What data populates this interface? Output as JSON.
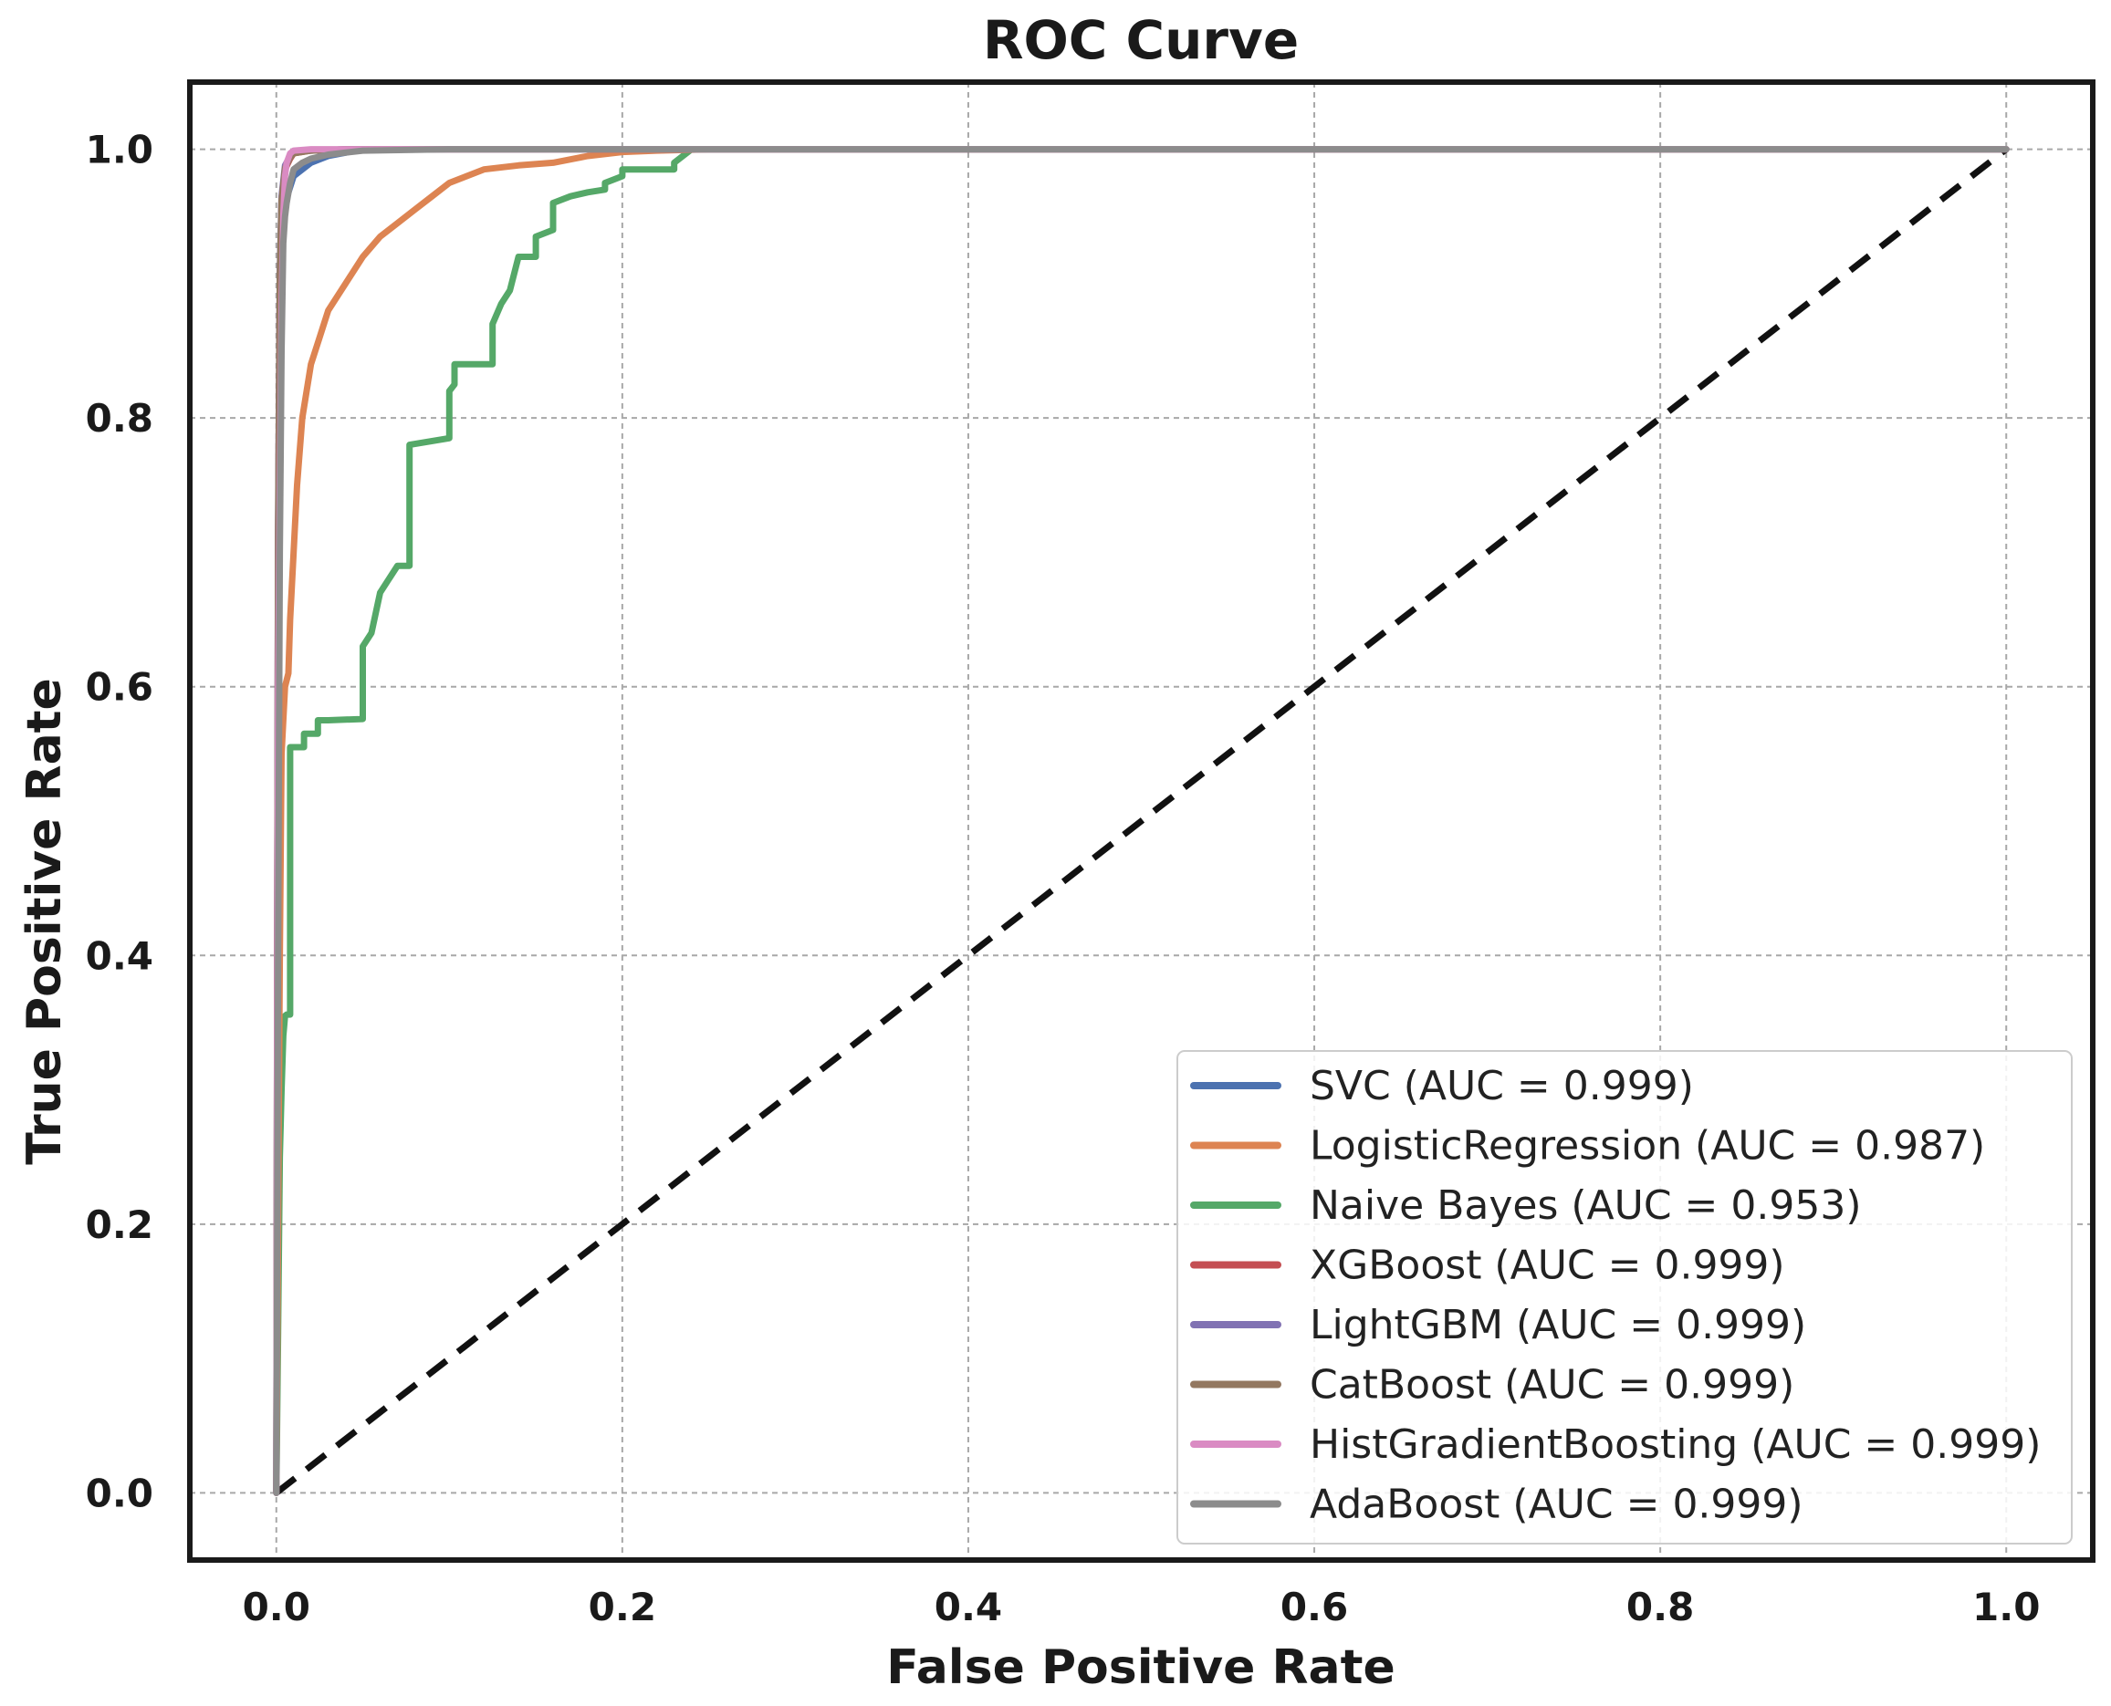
{
  "chart_data": {
    "type": "line",
    "title": "ROC Curve",
    "xlabel": "False Positive Rate",
    "ylabel": "True Positive Rate",
    "xlim": [
      -0.05,
      1.05
    ],
    "ylim": [
      -0.05,
      1.05
    ],
    "grid": true,
    "legend_position": "lower-right",
    "x_ticks": [
      0.0,
      0.2,
      0.4,
      0.6,
      0.8,
      1.0
    ],
    "x_tick_labels": [
      "0.0",
      "0.2",
      "0.4",
      "0.6",
      "0.8",
      "1.0"
    ],
    "y_ticks": [
      0.0,
      0.2,
      0.4,
      0.6,
      0.8,
      1.0
    ],
    "y_tick_labels": [
      "0.0",
      "0.2",
      "0.4",
      "0.6",
      "0.8",
      "1.0"
    ],
    "chance_line": {
      "x": [
        0,
        1
      ],
      "y": [
        0,
        1
      ]
    },
    "series": [
      {
        "name": "SVC (AUC = 0.999)",
        "color": "#4c72b0",
        "x": [
          0,
          0.0005,
          0.001,
          0.002,
          0.003,
          0.005,
          0.01,
          0.02,
          0.03,
          0.05,
          0.1,
          1.0
        ],
        "y": [
          0,
          0.3,
          0.6,
          0.85,
          0.93,
          0.96,
          0.98,
          0.99,
          0.995,
          1.0,
          1.0,
          1.0
        ]
      },
      {
        "name": "LogisticRegression (AUC = 0.987)",
        "color": "#dd8452",
        "x": [
          0,
          0.001,
          0.002,
          0.003,
          0.005,
          0.007,
          0.008,
          0.01,
          0.012,
          0.015,
          0.02,
          0.025,
          0.03,
          0.04,
          0.05,
          0.06,
          0.07,
          0.08,
          0.09,
          0.1,
          0.12,
          0.14,
          0.16,
          0.18,
          0.2,
          0.22,
          0.25,
          0.3,
          1.0
        ],
        "y": [
          0,
          0.2,
          0.4,
          0.55,
          0.6,
          0.61,
          0.65,
          0.7,
          0.75,
          0.8,
          0.84,
          0.86,
          0.88,
          0.9,
          0.92,
          0.935,
          0.945,
          0.955,
          0.965,
          0.975,
          0.985,
          0.988,
          0.99,
          0.995,
          0.998,
          0.999,
          1.0,
          1.0,
          1.0
        ]
      },
      {
        "name": "Naive Bayes (AUC = 0.953)",
        "color": "#55a868",
        "x": [
          0,
          0.001,
          0.002,
          0.003,
          0.004,
          0.005,
          0.006,
          0.008,
          0.008,
          0.016,
          0.016,
          0.024,
          0.024,
          0.03,
          0.05,
          0.05,
          0.055,
          0.06,
          0.065,
          0.07,
          0.077,
          0.077,
          0.1,
          0.1,
          0.103,
          0.103,
          0.125,
          0.125,
          0.13,
          0.135,
          0.14,
          0.15,
          0.15,
          0.16,
          0.16,
          0.17,
          0.18,
          0.19,
          0.19,
          0.2,
          0.2,
          0.23,
          0.23,
          0.24,
          1.0
        ],
        "y": [
          0,
          0.12,
          0.25,
          0.3,
          0.34,
          0.355,
          0.356,
          0.356,
          0.555,
          0.555,
          0.565,
          0.565,
          0.575,
          0.575,
          0.576,
          0.63,
          0.64,
          0.67,
          0.68,
          0.69,
          0.69,
          0.78,
          0.785,
          0.82,
          0.825,
          0.84,
          0.84,
          0.87,
          0.885,
          0.895,
          0.92,
          0.92,
          0.935,
          0.94,
          0.96,
          0.965,
          0.968,
          0.97,
          0.975,
          0.98,
          0.985,
          0.985,
          0.99,
          1.0,
          1.0
        ]
      },
      {
        "name": "XGBoost (AUC = 0.999)",
        "color": "#c44e52",
        "x": [
          0,
          0.0005,
          0.001,
          0.002,
          0.003,
          0.005,
          0.008,
          0.01,
          0.02,
          0.04,
          1.0
        ],
        "y": [
          0,
          0.4,
          0.7,
          0.9,
          0.96,
          0.985,
          0.993,
          0.997,
          0.999,
          1.0,
          1.0
        ]
      },
      {
        "name": "LightGBM (AUC = 0.999)",
        "color": "#8172b3",
        "x": [
          0,
          0.0005,
          0.001,
          0.002,
          0.003,
          0.005,
          0.008,
          0.01,
          0.02,
          0.04,
          1.0
        ],
        "y": [
          0,
          0.42,
          0.72,
          0.91,
          0.965,
          0.988,
          0.995,
          0.998,
          0.999,
          1.0,
          1.0
        ]
      },
      {
        "name": "CatBoost (AUC = 0.999)",
        "color": "#937860",
        "x": [
          0,
          0.0005,
          0.001,
          0.002,
          0.003,
          0.005,
          0.008,
          0.01,
          0.02,
          0.04,
          1.0
        ],
        "y": [
          0,
          0.41,
          0.71,
          0.905,
          0.962,
          0.986,
          0.994,
          0.997,
          0.999,
          1.0,
          1.0
        ]
      },
      {
        "name": "HistGradientBoosting (AUC = 0.999)",
        "color": "#da8bc3",
        "x": [
          0,
          0.0005,
          0.001,
          0.002,
          0.003,
          0.004,
          0.005,
          0.006,
          0.008,
          0.01,
          0.02,
          0.03,
          1.0
        ],
        "y": [
          0,
          0.35,
          0.6,
          0.75,
          0.88,
          0.95,
          0.98,
          0.99,
          0.997,
          0.999,
          1.0,
          1.0,
          1.0
        ]
      },
      {
        "name": "AdaBoost (AUC = 0.999)",
        "color": "#8c8c8c",
        "x": [
          0,
          0.001,
          0.002,
          0.003,
          0.004,
          0.005,
          0.006,
          0.008,
          0.01,
          0.015,
          0.02,
          0.03,
          0.05,
          0.1,
          1.0
        ],
        "y": [
          0,
          0.4,
          0.7,
          0.85,
          0.93,
          0.95,
          0.96,
          0.975,
          0.985,
          0.99,
          0.993,
          0.996,
          0.999,
          1.0,
          1.0
        ]
      }
    ]
  }
}
